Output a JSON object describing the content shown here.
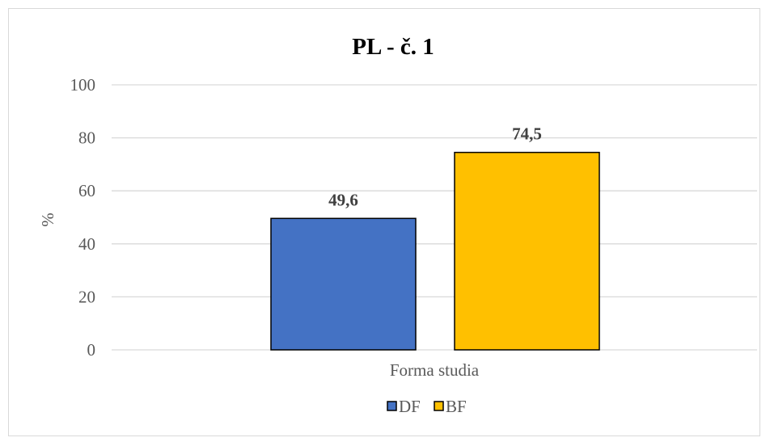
{
  "chart_data": {
    "type": "bar",
    "title": "PL - č. 1",
    "xlabel": "Forma studia",
    "ylabel": "%",
    "categories": [
      "Forma studia"
    ],
    "series": [
      {
        "name": "DF",
        "values": [
          49.6
        ],
        "label": "49,6",
        "color": "#4472c4"
      },
      {
        "name": "BF",
        "values": [
          74.5
        ],
        "label": "74,5",
        "color": "#ffc000"
      }
    ],
    "ylim": [
      0,
      100
    ],
    "yticks": [
      0,
      20,
      40,
      60,
      80,
      100
    ],
    "ytick_labels": [
      "0",
      "20",
      "40",
      "60",
      "80",
      "100"
    ],
    "grid": true,
    "legend_position": "bottom"
  }
}
